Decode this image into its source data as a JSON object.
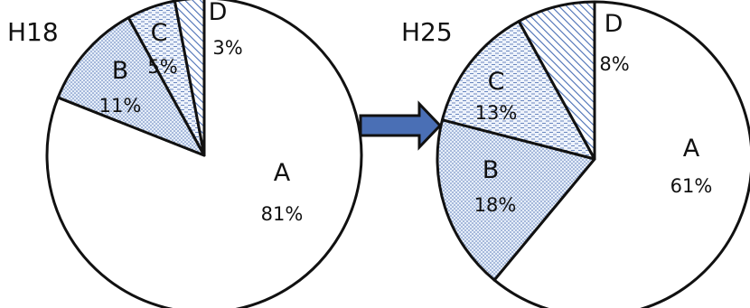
{
  "chart_data": [
    {
      "type": "pie",
      "title": "H18",
      "categories": [
        "A",
        "B",
        "C",
        "D"
      ],
      "values": [
        81,
        11,
        5,
        3
      ],
      "labels": [
        "81%",
        "11%",
        "5%",
        "3%"
      ]
    },
    {
      "type": "pie",
      "title": "H25",
      "categories": [
        "A",
        "B",
        "C",
        "D"
      ],
      "values": [
        61,
        18,
        13,
        8
      ],
      "labels": [
        "61%",
        "18%",
        "13%",
        "8%"
      ]
    }
  ],
  "arrow": {
    "color": "#4a6fb5",
    "icon": "right-arrow-icon"
  },
  "slice_fills": {
    "A": "#ffffff",
    "B": "dots",
    "C": "dashes",
    "D": "diagonal-hatch"
  }
}
